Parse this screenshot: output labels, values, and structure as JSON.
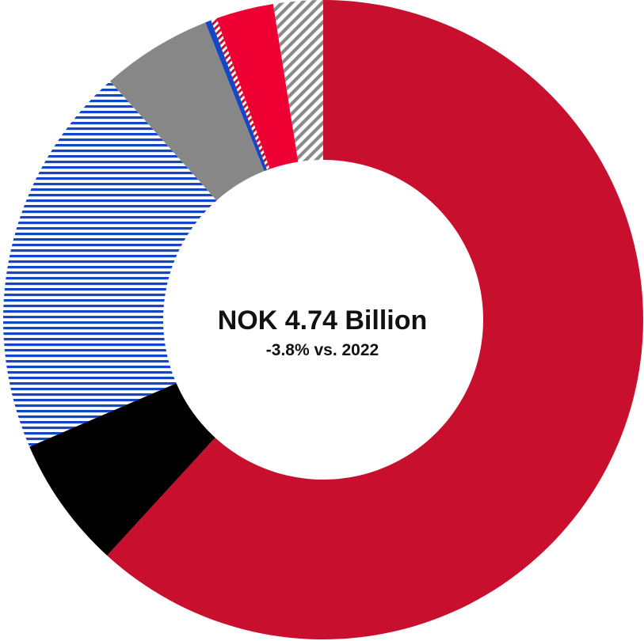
{
  "chart_data": {
    "type": "donut",
    "center_text": {
      "title": "NOK 4.74 Billion",
      "subtitle": "-3.8% vs. 2022"
    },
    "slices": [
      {
        "value": 61.8,
        "color": "#c8102e",
        "pattern": "solid"
      },
      {
        "value": 6.7,
        "color": "#000000",
        "pattern": "solid"
      },
      {
        "value": 19.9,
        "color": "#1447c8",
        "pattern": "horizontal-stripes"
      },
      {
        "value": 5.6,
        "color": "#878787",
        "pattern": "solid"
      },
      {
        "value": 0.3,
        "color": "#1447c8",
        "pattern": "solid"
      },
      {
        "value": 0.3,
        "color": "#c8102e",
        "pattern": "diagonal-stripes"
      },
      {
        "value": 2.9,
        "color": "#ef0033",
        "pattern": "solid"
      },
      {
        "value": 2.5,
        "color": "#8a8a8a",
        "pattern": "diagonal-stripes"
      }
    ]
  }
}
